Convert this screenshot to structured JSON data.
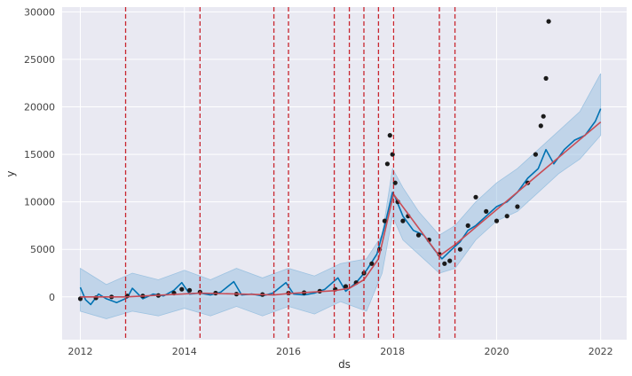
{
  "chart_data": {
    "type": "line",
    "title": "",
    "xlabel": "ds",
    "ylabel": "y",
    "xlim": [
      2011.65,
      2022.5
    ],
    "ylim": [
      -4500,
      30500
    ],
    "x_ticks": [
      2012,
      2014,
      2016,
      2018,
      2020,
      2022
    ],
    "x_tick_labels": [
      "2012",
      "2014",
      "2016",
      "2018",
      "2020",
      "2022"
    ],
    "y_ticks": [
      0,
      5000,
      10000,
      15000,
      20000,
      25000,
      30000
    ],
    "y_tick_labels": [
      "0",
      "5000",
      "10000",
      "15000",
      "20000",
      "25000",
      "30000"
    ],
    "grid": true,
    "colors": {
      "plot_background": "#e9e9f2",
      "grid": "#ffffff",
      "observed": "#1a1a1a",
      "forecast": "#0072b2",
      "uncertainty_band": "#9ec3e1",
      "trend": "#c94c55",
      "changepoint": "#c8262f"
    },
    "series": [
      {
        "role": "observed points",
        "x": [
          2012.0,
          2012.3,
          2012.6,
          2012.9,
          2013.2,
          2013.5,
          2013.8,
          2013.95,
          2014.1,
          2014.3,
          2014.6,
          2015.0,
          2015.5,
          2016.0,
          2016.3,
          2016.6,
          2016.9,
          2017.1,
          2017.3,
          2017.45,
          2017.6,
          2017.75,
          2017.85,
          2017.9,
          2017.95,
          2018.0,
          2018.05,
          2018.1,
          2018.2,
          2018.3,
          2018.5,
          2018.7,
          2018.9,
          2019.0,
          2019.1,
          2019.3,
          2019.45,
          2019.6,
          2019.8,
          2020.0,
          2020.2,
          2020.4,
          2020.6,
          2020.75,
          2020.85,
          2020.9,
          2020.95,
          2021.0
        ],
        "y": [
          -200,
          -100,
          0,
          100,
          100,
          150,
          400,
          800,
          700,
          500,
          400,
          300,
          250,
          400,
          450,
          600,
          800,
          1100,
          1500,
          2500,
          3500,
          5000,
          8000,
          14000,
          17000,
          15000,
          12000,
          10000,
          8000,
          8500,
          6500,
          6000,
          4500,
          3500,
          3800,
          5000,
          7500,
          10500,
          9000,
          8000,
          8500,
          9500,
          12000,
          15000,
          18000,
          19000,
          23000,
          29000
        ]
      },
      {
        "role": "forecast",
        "x": [
          2012.0,
          2012.1,
          2012.2,
          2012.35,
          2012.5,
          2012.7,
          2012.9,
          2013.0,
          2013.2,
          2013.4,
          2013.6,
          2013.8,
          2013.95,
          2014.1,
          2014.3,
          2014.5,
          2014.7,
          2014.95,
          2015.1,
          2015.3,
          2015.5,
          2015.7,
          2015.95,
          2016.1,
          2016.3,
          2016.5,
          2016.7,
          2016.95,
          2017.1,
          2017.3,
          2017.5,
          2017.7,
          2017.85,
          2018.0,
          2018.05,
          2018.2,
          2018.4,
          2018.6,
          2018.8,
          2018.95,
          2019.1,
          2019.3,
          2019.45,
          2019.6,
          2019.8,
          2020.0,
          2020.2,
          2020.4,
          2020.6,
          2020.8,
          2020.95,
          2021.1,
          2021.3,
          2021.5,
          2021.7,
          2021.9,
          2022.0
        ],
        "y": [
          1000,
          -300,
          -800,
          300,
          -200,
          -600,
          -100,
          900,
          -200,
          300,
          100,
          700,
          1500,
          300,
          400,
          200,
          500,
          1600,
          200,
          300,
          100,
          400,
          1500,
          300,
          200,
          400,
          800,
          2000,
          600,
          1500,
          2800,
          4500,
          7500,
          11000,
          10500,
          8500,
          7000,
          6500,
          5000,
          4000,
          4800,
          5800,
          7000,
          7500,
          8500,
          9500,
          10000,
          11000,
          12500,
          13500,
          15500,
          14000,
          15500,
          16500,
          17000,
          18500,
          19800
        ]
      },
      {
        "role": "uncertainty lower",
        "x": [
          2012.0,
          2012.5,
          2013.0,
          2013.5,
          2014.0,
          2014.5,
          2015.0,
          2015.5,
          2016.0,
          2016.5,
          2017.0,
          2017.5,
          2017.8,
          2018.0,
          2018.2,
          2018.5,
          2018.9,
          2019.2,
          2019.6,
          2020.0,
          2020.4,
          2020.8,
          2021.2,
          2021.6,
          2022.0
        ],
        "y": [
          -1500,
          -2300,
          -1500,
          -2000,
          -1200,
          -2000,
          -1000,
          -2000,
          -1000,
          -1800,
          -500,
          -1500,
          2500,
          8500,
          6000,
          4500,
          2500,
          3000,
          6000,
          8000,
          9000,
          11000,
          13000,
          14500,
          17000
        ]
      },
      {
        "role": "uncertainty upper",
        "x": [
          2012.0,
          2012.5,
          2013.0,
          2013.5,
          2014.0,
          2014.5,
          2015.0,
          2015.5,
          2016.0,
          2016.5,
          2017.0,
          2017.5,
          2017.8,
          2018.0,
          2018.2,
          2018.5,
          2018.9,
          2019.2,
          2019.6,
          2020.0,
          2020.4,
          2020.8,
          2021.2,
          2021.6,
          2022.0
        ],
        "y": [
          3000,
          1300,
          2500,
          1800,
          2800,
          1800,
          3000,
          2000,
          3000,
          2200,
          3500,
          4000,
          6500,
          13500,
          11500,
          9000,
          6500,
          7500,
          10000,
          12000,
          13500,
          15500,
          17500,
          19500,
          23500
        ]
      },
      {
        "role": "trend",
        "x": [
          2012.0,
          2012.87,
          2014.3,
          2015.72,
          2016.0,
          2016.88,
          2017.17,
          2017.45,
          2017.73,
          2018.02,
          2018.9,
          2019.2,
          2022.0
        ],
        "y": [
          0,
          0,
          400,
          200,
          350,
          650,
          900,
          1800,
          4000,
          10800,
          4300,
          5500,
          18400
        ]
      }
    ],
    "changepoints": [
      2012.87,
      2014.3,
      2015.72,
      2016.0,
      2016.88,
      2017.17,
      2017.45,
      2017.73,
      2018.02,
      2018.9,
      2019.2
    ]
  }
}
